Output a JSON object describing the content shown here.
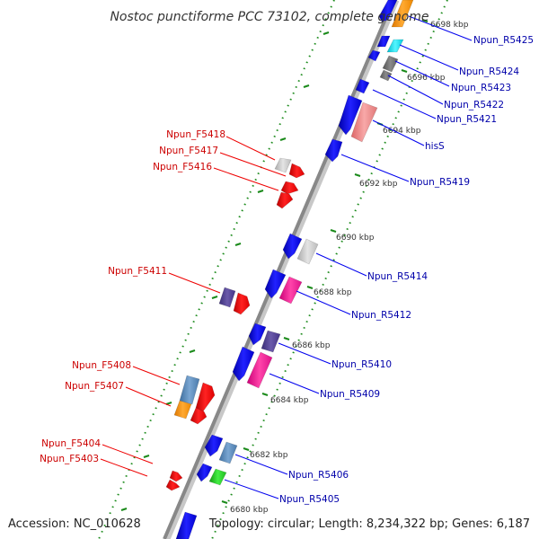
{
  "title": "Nostoc punctiforme PCC 73102, complete genome",
  "footer": {
    "accession": "Accession: NC_010628",
    "summary": "Topology: circular; Length: 8,234,322 bp; Genes: 6,187"
  },
  "ticks": [
    "6698 kbp",
    "6696 kbp",
    "6694 kbp",
    "6692 kbp",
    "6690 kbp",
    "6688 kbp",
    "6686 kbp",
    "6684 kbp",
    "6682 kbp",
    "6680 kbp"
  ],
  "reverse_labels": [
    "Npun_R5425",
    "Npun_R5424",
    "Npun_R5423",
    "Npun_R5422",
    "Npun_R5421",
    "hisS",
    "Npun_R5419",
    "Npun_R5414",
    "Npun_R5412",
    "Npun_R5410",
    "Npun_R5409",
    "Npun_R5406",
    "Npun_R5405"
  ],
  "forward_labels": [
    "Npun_F5418",
    "Npun_F5417",
    "Npun_F5416",
    "Npun_F5411",
    "Npun_F5408",
    "Npun_F5407",
    "Npun_F5404",
    "Npun_F5403"
  ],
  "colors": {
    "backbone": "#888888",
    "tick_green": "#1a8a1a",
    "forward_label": "#cc0000",
    "reverse_label": "#0000aa",
    "gene_blue": "#0000ee",
    "gene_red": "#ee0000",
    "gene_gray": "#c8c8c8",
    "gene_darkgray": "#707070",
    "gene_orange": "#ff9900",
    "gene_cyan": "#00e5f0",
    "gene_pink": "#ee1199",
    "gene_salmon": "#f08888",
    "gene_slate": "#554499",
    "gene_steel": "#5588bb",
    "gene_green": "#22cc22"
  }
}
